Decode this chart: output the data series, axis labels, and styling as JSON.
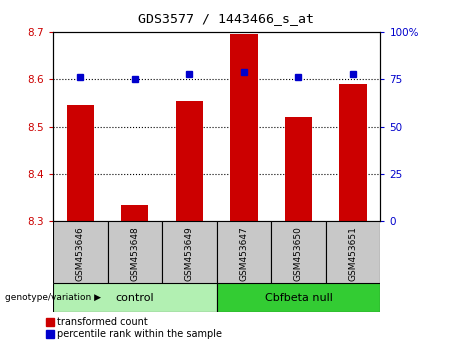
{
  "title": "GDS3577 / 1443466_s_at",
  "samples": [
    "GSM453646",
    "GSM453648",
    "GSM453649",
    "GSM453647",
    "GSM453650",
    "GSM453651"
  ],
  "red_values": [
    8.545,
    8.335,
    8.555,
    8.695,
    8.52,
    8.59
  ],
  "blue_values": [
    76,
    75,
    78,
    79,
    76,
    78
  ],
  "ylim_left": [
    8.3,
    8.7
  ],
  "ylim_right": [
    0,
    100
  ],
  "yticks_left": [
    8.3,
    8.4,
    8.5,
    8.6,
    8.7
  ],
  "yticks_right": [
    0,
    25,
    50,
    75,
    100
  ],
  "ytick_labels_right": [
    "0",
    "25",
    "50",
    "75",
    "100%"
  ],
  "red_color": "#cc0000",
  "blue_color": "#0000cc",
  "bar_width": 0.5,
  "background_color": "#ffffff",
  "plot_bg_color": "#ffffff",
  "label_area_color": "#c8c8c8",
  "control_color": "#b2f0b2",
  "cbfbeta_color": "#33cc33",
  "group_label": "genotype/variation",
  "legend_red": "transformed count",
  "legend_blue": "percentile rank within the sample",
  "grid_lines": [
    8.4,
    8.5,
    8.6
  ],
  "groups": [
    {
      "label": "control",
      "start": 0,
      "end": 2
    },
    {
      "label": "Cbfbeta null",
      "start": 3,
      "end": 5
    }
  ]
}
